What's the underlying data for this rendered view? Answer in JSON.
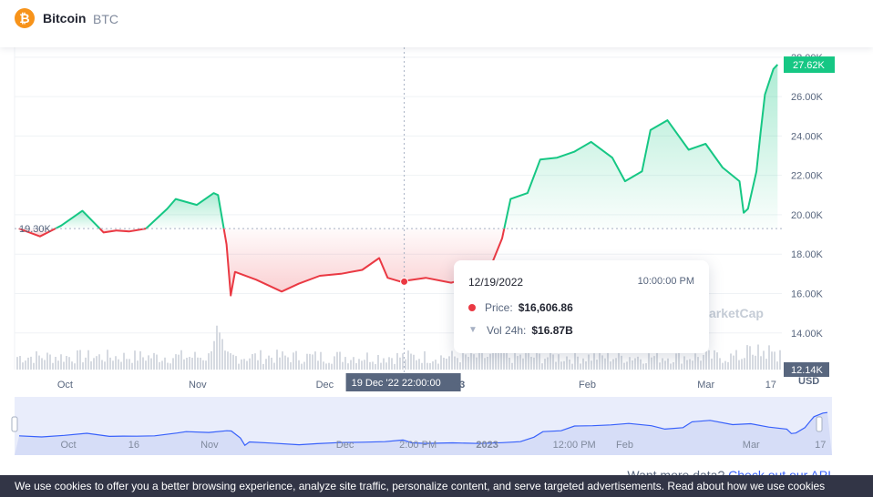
{
  "header": {
    "logo_glyph": "₿",
    "coin_name": "Bitcoin",
    "coin_symbol": "BTC"
  },
  "colors": {
    "up": "#16c784",
    "down": "#ea3943",
    "brand": "#f7931a",
    "link": "#3861fb"
  },
  "chart_data": {
    "type": "area",
    "baseline": 19300,
    "baseline_label": "19.30K",
    "current_price_label": "27.62K",
    "ylim": [
      12140,
      28500
    ],
    "y_ticks": [
      28000,
      26000,
      24000,
      22000,
      20000,
      18000,
      16000,
      14000
    ],
    "y_tick_labels": [
      "28.00K",
      "26.00K",
      "24.00K",
      "22.00K",
      "20.00K",
      "18.00K",
      "16.00K",
      "14.00K"
    ],
    "y_min_label": "12.14K",
    "ylabel": "USD",
    "x_tick_labels": [
      "Oct",
      "Nov",
      "Dec",
      "2023",
      "Feb",
      "Mar",
      "17"
    ],
    "series": [
      {
        "x": [
          "2022-09-20",
          "2022-09-25",
          "2022-09-30",
          "2022-10-05",
          "2022-10-10",
          "2022-10-13",
          "2022-10-16",
          "2022-10-20",
          "2022-10-25",
          "2022-10-27",
          "2022-11-01",
          "2022-11-05",
          "2022-11-06",
          "2022-11-08",
          "2022-11-09",
          "2022-11-10",
          "2022-11-15",
          "2022-11-21",
          "2022-11-25",
          "2022-11-30",
          "2022-12-05",
          "2022-12-10",
          "2022-12-14",
          "2022-12-16",
          "2022-12-19",
          "2022-12-25",
          "2022-12-31",
          "2023-01-05",
          "2023-01-09",
          "2023-01-12",
          "2023-01-14",
          "2023-01-18",
          "2023-01-21",
          "2023-01-25",
          "2023-01-29",
          "2023-02-02",
          "2023-02-07",
          "2023-02-10",
          "2023-02-14",
          "2023-02-16",
          "2023-02-20",
          "2023-02-25",
          "2023-03-01",
          "2023-03-05",
          "2023-03-09",
          "2023-03-10",
          "2023-03-11",
          "2023-03-13",
          "2023-03-14",
          "2023-03-15",
          "2023-03-17",
          "2023-03-18"
        ],
        "values": [
          19300,
          18900,
          19450,
          20200,
          19100,
          19200,
          19150,
          19300,
          20300,
          20800,
          20500,
          21100,
          21000,
          18500,
          15900,
          17100,
          16700,
          16100,
          16500,
          16900,
          17000,
          17200,
          17800,
          16800,
          16607,
          16800,
          16550,
          16850,
          17200,
          18800,
          20800,
          21100,
          22800,
          22900,
          23200,
          23700,
          22900,
          21700,
          22200,
          24300,
          24800,
          23300,
          23600,
          22400,
          21700,
          20100,
          20300,
          22200,
          24200,
          26100,
          27400,
          27620
        ]
      }
    ],
    "volume_note": "Vol 24h",
    "tooltip": {
      "date": "12/19/2022",
      "time": "10:00:00 PM",
      "price_label": "Price:",
      "price_value": "$16,606.86",
      "vol_label": "Vol 24h:",
      "vol_value": "$16.87B"
    },
    "crosshair_label": "19 Dec '22   22:00:00",
    "watermark": "arketCap",
    "navigator_tick_labels": [
      "Oct",
      "16",
      "Nov",
      "Dec",
      "2:00 PM",
      "2023",
      "12:00 PM",
      "Feb",
      "Mar",
      "17"
    ]
  },
  "footer": {
    "more_data_text": "Want more data?",
    "api_link_text": "Check out our API",
    "cookie_text": "We use cookies to offer you a better browsing experience, analyze site traffic, personalize content, and serve targeted advertisements. Read about how we use cookies"
  }
}
